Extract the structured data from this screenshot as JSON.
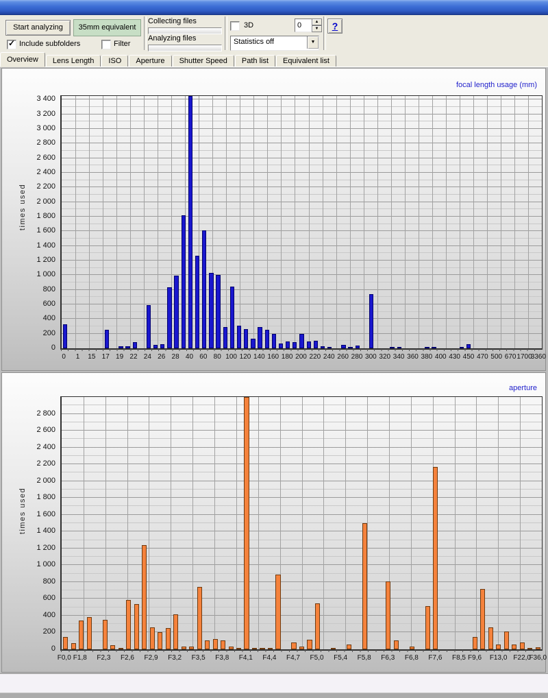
{
  "toolbar": {
    "start_button": "Start analyzing",
    "equivalent_button": "35mm equivalent",
    "collecting_label": "Collecting files",
    "analyzing_label": "Analyzing files",
    "threed_label": "3D",
    "spinner_value": "0",
    "help_label": "?",
    "include_subfolders_label": "Include subfolders",
    "include_subfolders_checked": true,
    "filter_label": "Filter",
    "filter_checked": false,
    "threed_checked": false,
    "statistics_value": "Statistics off",
    "check_icon": "✓",
    "dropdown_arrow_icon": "▼",
    "spin_up_icon": "▲",
    "spin_down_icon": "▼"
  },
  "tabs": [
    {
      "label": "Overview",
      "active": true
    },
    {
      "label": "Lens Length",
      "active": false
    },
    {
      "label": "ISO",
      "active": false
    },
    {
      "label": "Aperture",
      "active": false
    },
    {
      "label": "Shutter Speed",
      "active": false
    },
    {
      "label": "Path list",
      "active": false
    },
    {
      "label": "Equivalent list",
      "active": false
    }
  ],
  "colors": {
    "focal_bar": "#1A17CE",
    "focal_bar_border": "#00006E",
    "aperture_bar": "#F5823C",
    "aperture_bar_border": "#6E3A10",
    "chart_title": "#2222CC",
    "green_button_bg": "#C7DEC5",
    "titlebar_blue": "#3B6CD4"
  },
  "chart_data": [
    {
      "type": "bar",
      "title": "focal length usage (mm)",
      "xlabel": "",
      "ylabel": "times used",
      "ylim": [
        0,
        3450
      ],
      "ytick_step": 200,
      "ytick_max": 3400,
      "grid": true,
      "legend": "none",
      "bar_color": "#1A17CE",
      "bar_border": "#00006E",
      "note_clipped": "bar at 40mm exceeds axis maximum (clipped at plot top)",
      "categories": [
        "0",
        "",
        "1",
        "",
        "15",
        "",
        "17",
        "",
        "19",
        "",
        "22",
        "",
        "24",
        "",
        "26",
        "",
        "28",
        "",
        "40",
        "",
        "60",
        "",
        "80",
        "",
        "100",
        "",
        "120",
        "",
        "140",
        "",
        "160",
        "",
        "180",
        "",
        "200",
        "",
        "220",
        "",
        "240",
        "",
        "260",
        "",
        "280",
        "",
        "300",
        "",
        "320",
        "",
        "340",
        "",
        "360",
        "",
        "380",
        "",
        "400",
        "",
        "430",
        "",
        "450",
        "",
        "470",
        "",
        "500",
        "",
        "670",
        "",
        "1700",
        "",
        "3360"
      ],
      "values": [
        330,
        0,
        0,
        0,
        0,
        0,
        255,
        0,
        25,
        25,
        85,
        0,
        590,
        45,
        55,
        830,
        990,
        1820,
        3500,
        1270,
        1610,
        1030,
        1000,
        290,
        840,
        310,
        265,
        135,
        290,
        250,
        200,
        65,
        90,
        85,
        195,
        95,
        105,
        30,
        10,
        0,
        45,
        20,
        40,
        0,
        740,
        0,
        0,
        10,
        5,
        0,
        0,
        0,
        15,
        15,
        0,
        0,
        0,
        10,
        55,
        0,
        0,
        0,
        0,
        0,
        0,
        0,
        0,
        0,
        0
      ]
    },
    {
      "type": "bar",
      "title": "aperture",
      "xlabel": "",
      "ylabel": "times used",
      "ylim": [
        0,
        3000
      ],
      "ytick_step": 200,
      "ytick_max": 2800,
      "grid": true,
      "legend": "none",
      "bar_color": "#F5823C",
      "bar_border": "#6E3A10",
      "note_clipped": "bar at F4,1 exceeds axis maximum (clipped at plot top)",
      "categories": [
        "F0,0",
        "",
        "F1,8",
        "",
        "",
        "F2,3",
        "",
        "",
        "F2,6",
        "",
        "",
        "F2,9",
        "",
        "",
        "F3,2",
        "",
        "",
        "F3,5",
        "",
        "",
        "F3,8",
        "",
        "",
        "F4,1",
        "",
        "",
        "F4,4",
        "",
        "",
        "F4,7",
        "",
        "",
        "F5,0",
        "",
        "",
        "F5,4",
        "",
        "",
        "F5,8",
        "",
        "",
        "F6,3",
        "",
        "",
        "F6,8",
        "",
        "",
        "F7,6",
        "",
        "",
        "F8,5",
        "",
        "F9,6",
        "",
        "",
        "F13,0",
        "",
        "",
        "F22,0",
        "",
        "F36,0"
      ],
      "values": [
        145,
        70,
        340,
        385,
        0,
        350,
        45,
        20,
        590,
        535,
        1240,
        265,
        200,
        255,
        415,
        35,
        30,
        740,
        105,
        120,
        105,
        35,
        5,
        3000,
        10,
        5,
        10,
        890,
        0,
        85,
        30,
        115,
        545,
        0,
        20,
        0,
        55,
        0,
        1500,
        0,
        0,
        810,
        110,
        0,
        30,
        0,
        510,
        2170,
        0,
        0,
        0,
        0,
        150,
        720,
        265,
        60,
        215,
        60,
        85,
        10,
        25
      ]
    }
  ]
}
